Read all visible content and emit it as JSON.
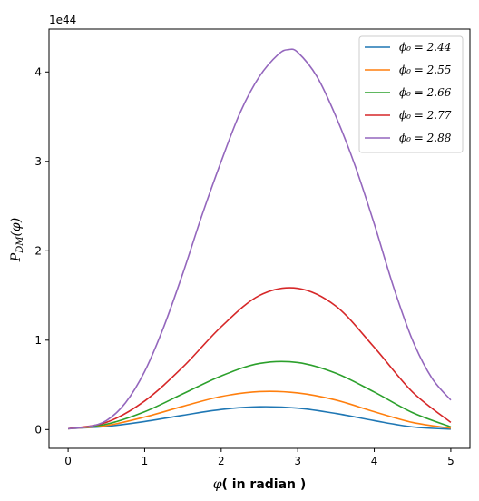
{
  "chart_data": {
    "type": "line",
    "xlabel_phi": "φ",
    "xlabel_rest": "( in radian )",
    "ylabel_main": "P",
    "ylabel_sub": "DM",
    "ylabel_arg": "(φ)",
    "offset_text": "1e44",
    "xlim": [
      -0.25,
      5.25
    ],
    "ylim": [
      -0.21,
      4.48
    ],
    "xticks": [
      0,
      1,
      2,
      3,
      4,
      5
    ],
    "yticks": [
      0,
      1,
      2,
      3,
      4
    ],
    "legend_position": "top-right",
    "series": [
      {
        "name": "ϕ₀ = 2.44",
        "color": "#1f77b4",
        "x": [
          0,
          0.5,
          1,
          1.5,
          2,
          2.5,
          3,
          3.5,
          4,
          4.5,
          5
        ],
        "y": [
          0.01,
          0.035,
          0.09,
          0.16,
          0.225,
          0.255,
          0.24,
          0.18,
          0.1,
          0.03,
          0.005
        ]
      },
      {
        "name": "ϕ₀ = 2.55",
        "color": "#ff7f0e",
        "x": [
          0,
          0.5,
          1,
          1.5,
          2,
          2.5,
          3,
          3.5,
          4,
          4.5,
          5
        ],
        "y": [
          0.01,
          0.045,
          0.14,
          0.26,
          0.37,
          0.425,
          0.41,
          0.33,
          0.2,
          0.08,
          0.015
        ]
      },
      {
        "name": "ϕ₀ = 2.66",
        "color": "#2ca02c",
        "x": [
          0,
          0.5,
          1,
          1.5,
          2,
          2.5,
          3,
          3.5,
          4,
          4.5,
          5
        ],
        "y": [
          0.01,
          0.06,
          0.2,
          0.4,
          0.6,
          0.74,
          0.75,
          0.63,
          0.42,
          0.19,
          0.03
        ]
      },
      {
        "name": "ϕ₀ = 2.77",
        "color": "#d62728",
        "x": [
          0,
          0.5,
          1,
          1.5,
          2,
          2.5,
          3,
          3.5,
          4,
          4.5,
          5
        ],
        "y": [
          0.01,
          0.08,
          0.32,
          0.7,
          1.15,
          1.5,
          1.58,
          1.38,
          0.92,
          0.42,
          0.08
        ]
      },
      {
        "name": "ϕ₀ = 2.88",
        "color": "#9467bd",
        "x": [
          0,
          0.25,
          0.5,
          0.75,
          1,
          1.25,
          1.5,
          1.75,
          2,
          2.25,
          2.5,
          2.75,
          2.88,
          3,
          3.25,
          3.5,
          3.75,
          4,
          4.25,
          4.5,
          4.75,
          5
        ],
        "y": [
          0.01,
          0.03,
          0.1,
          0.3,
          0.65,
          1.15,
          1.75,
          2.4,
          3.0,
          3.55,
          3.95,
          4.2,
          4.25,
          4.22,
          3.95,
          3.5,
          2.95,
          2.3,
          1.6,
          1.0,
          0.58,
          0.33
        ]
      }
    ]
  }
}
